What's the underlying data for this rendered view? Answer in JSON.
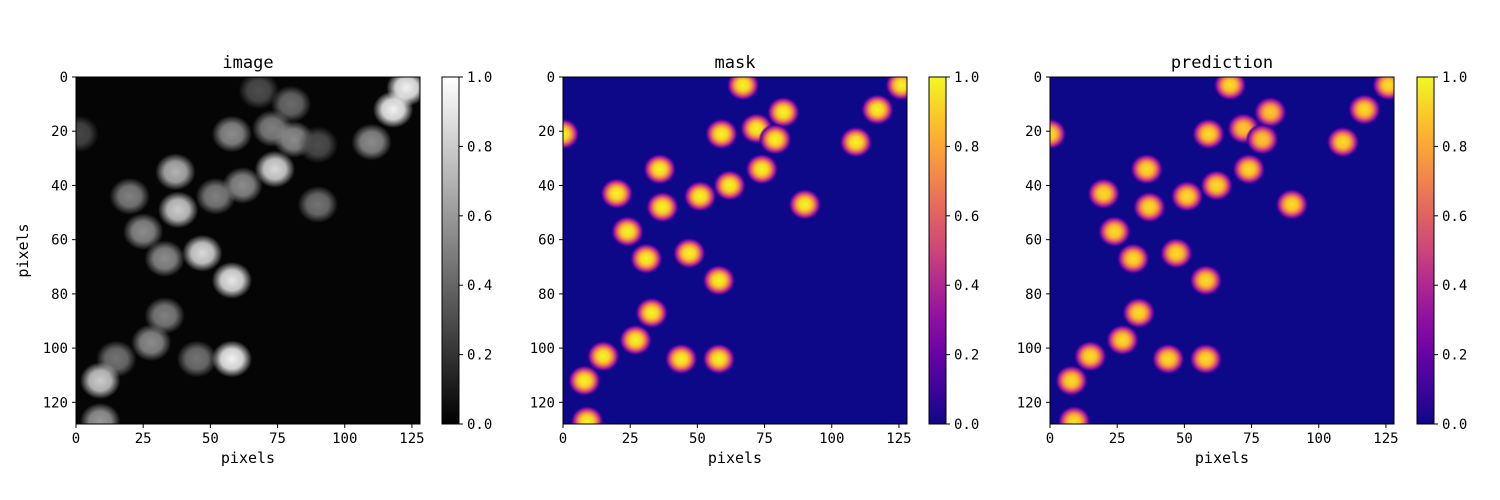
{
  "chart_data": [
    {
      "type": "heatmap",
      "title": "image",
      "xlabel": "pixels",
      "ylabel": "pixels",
      "xticks": [
        0,
        25,
        50,
        75,
        100,
        125
      ],
      "yticks": [
        0,
        20,
        40,
        60,
        80,
        100,
        120
      ],
      "xlim": [
        0,
        128
      ],
      "ylim": [
        128,
        0
      ],
      "colormap": "gray",
      "colorbar": {
        "range": [
          0.0,
          1.0
        ],
        "ticks": [
          "0.0",
          "0.2",
          "0.4",
          "0.6",
          "0.8",
          "1.0"
        ]
      },
      "background_value": 0.02,
      "blobs": [
        {
          "x": 1,
          "y": 21,
          "v": 0.28
        },
        {
          "x": 68,
          "y": 5,
          "v": 0.3
        },
        {
          "x": 80,
          "y": 10,
          "v": 0.42
        },
        {
          "x": 123,
          "y": 4,
          "v": 0.95
        },
        {
          "x": 118,
          "y": 12,
          "v": 0.95
        },
        {
          "x": 58,
          "y": 21,
          "v": 0.55
        },
        {
          "x": 73,
          "y": 19,
          "v": 0.5
        },
        {
          "x": 81,
          "y": 23,
          "v": 0.55
        },
        {
          "x": 90,
          "y": 25,
          "v": 0.3
        },
        {
          "x": 110,
          "y": 24,
          "v": 0.55
        },
        {
          "x": 37,
          "y": 35,
          "v": 0.7
        },
        {
          "x": 74,
          "y": 34,
          "v": 0.85
        },
        {
          "x": 62,
          "y": 40,
          "v": 0.55
        },
        {
          "x": 20,
          "y": 44,
          "v": 0.5
        },
        {
          "x": 38,
          "y": 49,
          "v": 0.8
        },
        {
          "x": 52,
          "y": 44,
          "v": 0.5
        },
        {
          "x": 90,
          "y": 47,
          "v": 0.45
        },
        {
          "x": 25,
          "y": 57,
          "v": 0.55
        },
        {
          "x": 33,
          "y": 67,
          "v": 0.55
        },
        {
          "x": 47,
          "y": 65,
          "v": 0.85
        },
        {
          "x": 58,
          "y": 75,
          "v": 0.9
        },
        {
          "x": 33,
          "y": 88,
          "v": 0.5
        },
        {
          "x": 28,
          "y": 98,
          "v": 0.55
        },
        {
          "x": 15,
          "y": 104,
          "v": 0.45
        },
        {
          "x": 45,
          "y": 104,
          "v": 0.45
        },
        {
          "x": 58,
          "y": 104,
          "v": 0.95
        },
        {
          "x": 9,
          "y": 112,
          "v": 0.8
        },
        {
          "x": 9,
          "y": 127,
          "v": 0.6
        }
      ]
    },
    {
      "type": "heatmap",
      "title": "mask",
      "xlabel": "pixels",
      "ylabel": "",
      "xticks": [
        0,
        25,
        50,
        75,
        100,
        125
      ],
      "yticks": [
        0,
        20,
        40,
        60,
        80,
        100,
        120
      ],
      "xlim": [
        0,
        128
      ],
      "ylim": [
        128,
        0
      ],
      "colormap": "plasma",
      "colorbar": {
        "range": [
          0.0,
          1.0
        ],
        "ticks": [
          "0.0",
          "0.2",
          "0.4",
          "0.6",
          "0.8",
          "1.0"
        ]
      },
      "background_value": 0.0,
      "blobs": [
        {
          "x": 0,
          "y": 21,
          "v": 1.0
        },
        {
          "x": 67,
          "y": 3,
          "v": 1.0
        },
        {
          "x": 82,
          "y": 13,
          "v": 1.0
        },
        {
          "x": 126,
          "y": 3,
          "v": 1.0
        },
        {
          "x": 117,
          "y": 12,
          "v": 1.0
        },
        {
          "x": 59,
          "y": 21,
          "v": 1.0
        },
        {
          "x": 72,
          "y": 19,
          "v": 1.0
        },
        {
          "x": 79,
          "y": 23,
          "v": 1.0
        },
        {
          "x": 109,
          "y": 24,
          "v": 1.0
        },
        {
          "x": 36,
          "y": 34,
          "v": 1.0
        },
        {
          "x": 74,
          "y": 34,
          "v": 1.0
        },
        {
          "x": 62,
          "y": 40,
          "v": 1.0
        },
        {
          "x": 20,
          "y": 43,
          "v": 1.0
        },
        {
          "x": 37,
          "y": 48,
          "v": 1.0
        },
        {
          "x": 51,
          "y": 44,
          "v": 1.0
        },
        {
          "x": 90,
          "y": 47,
          "v": 1.0
        },
        {
          "x": 24,
          "y": 57,
          "v": 1.0
        },
        {
          "x": 31,
          "y": 67,
          "v": 1.0
        },
        {
          "x": 47,
          "y": 65,
          "v": 1.0
        },
        {
          "x": 58,
          "y": 75,
          "v": 1.0
        },
        {
          "x": 33,
          "y": 87,
          "v": 1.0
        },
        {
          "x": 27,
          "y": 97,
          "v": 1.0
        },
        {
          "x": 15,
          "y": 103,
          "v": 1.0
        },
        {
          "x": 44,
          "y": 104,
          "v": 1.0
        },
        {
          "x": 58,
          "y": 104,
          "v": 1.0
        },
        {
          "x": 8,
          "y": 112,
          "v": 1.0
        },
        {
          "x": 9,
          "y": 127,
          "v": 1.0
        }
      ]
    },
    {
      "type": "heatmap",
      "title": "prediction",
      "xlabel": "pixels",
      "ylabel": "",
      "xticks": [
        0,
        25,
        50,
        75,
        100,
        125
      ],
      "yticks": [
        0,
        20,
        40,
        60,
        80,
        100,
        120
      ],
      "xlim": [
        0,
        128
      ],
      "ylim": [
        128,
        0
      ],
      "colormap": "plasma",
      "colorbar": {
        "range": [
          0.0,
          1.0
        ],
        "ticks": [
          "0.0",
          "0.2",
          "0.4",
          "0.6",
          "0.8",
          "1.0"
        ]
      },
      "background_value": 0.0,
      "blobs": [
        {
          "x": 0,
          "y": 21,
          "v": 0.95
        },
        {
          "x": 67,
          "y": 3,
          "v": 0.95
        },
        {
          "x": 82,
          "y": 13,
          "v": 0.9
        },
        {
          "x": 126,
          "y": 3,
          "v": 0.95
        },
        {
          "x": 117,
          "y": 12,
          "v": 0.95
        },
        {
          "x": 59,
          "y": 21,
          "v": 0.95
        },
        {
          "x": 72,
          "y": 19,
          "v": 0.9
        },
        {
          "x": 79,
          "y": 23,
          "v": 0.9
        },
        {
          "x": 109,
          "y": 24,
          "v": 0.95
        },
        {
          "x": 36,
          "y": 34,
          "v": 0.95
        },
        {
          "x": 74,
          "y": 34,
          "v": 0.95
        },
        {
          "x": 62,
          "y": 40,
          "v": 0.95
        },
        {
          "x": 20,
          "y": 43,
          "v": 0.95
        },
        {
          "x": 37,
          "y": 48,
          "v": 0.95
        },
        {
          "x": 51,
          "y": 44,
          "v": 0.95
        },
        {
          "x": 90,
          "y": 47,
          "v": 0.95
        },
        {
          "x": 24,
          "y": 57,
          "v": 0.95
        },
        {
          "x": 31,
          "y": 67,
          "v": 0.95
        },
        {
          "x": 47,
          "y": 65,
          "v": 0.95
        },
        {
          "x": 58,
          "y": 75,
          "v": 0.95
        },
        {
          "x": 33,
          "y": 87,
          "v": 0.95
        },
        {
          "x": 27,
          "y": 97,
          "v": 0.95
        },
        {
          "x": 15,
          "y": 103,
          "v": 0.95
        },
        {
          "x": 44,
          "y": 104,
          "v": 0.95
        },
        {
          "x": 58,
          "y": 104,
          "v": 0.95
        },
        {
          "x": 8,
          "y": 112,
          "v": 0.95
        },
        {
          "x": 9,
          "y": 127,
          "v": 0.95
        }
      ]
    }
  ]
}
